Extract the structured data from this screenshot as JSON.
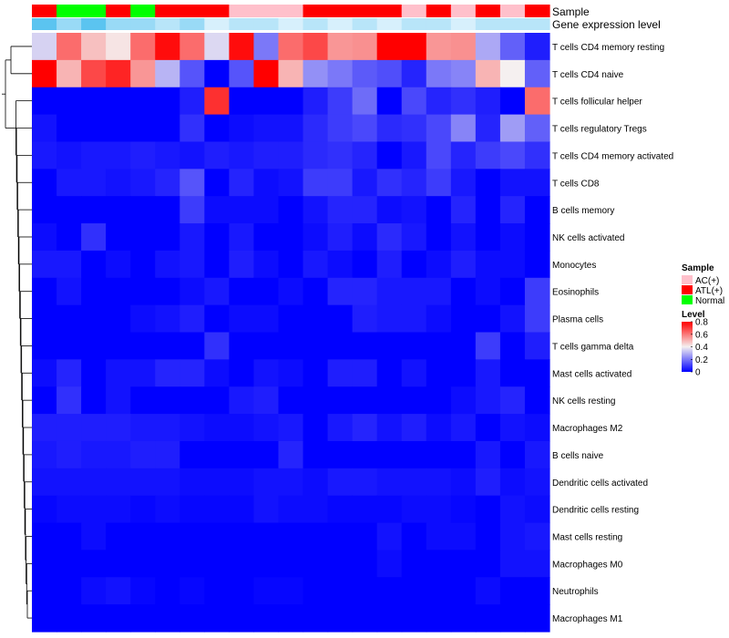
{
  "chart_data": {
    "type": "heatmap",
    "title": "",
    "annotation_rows": [
      "Sample",
      "Gene expression level"
    ],
    "rows": [
      "T cells CD4 memory resting",
      "T cells CD4 naive",
      "T cells follicular helper",
      "T cells regulatory  Tregs",
      "T cells CD4 memory activated",
      "T cells CD8",
      "B cells memory",
      "NK cells activated",
      "Monocytes",
      "Eosinophils",
      "Plasma cells",
      "T cells gamma delta",
      "Mast cells activated",
      "NK cells resting",
      "Macrophages M2",
      "B cells naive",
      "Dendritic cells activated",
      "Dendritic cells resting",
      "Mast cells resting",
      "Macrophages M0",
      "Neutrophils",
      "Macrophages M1"
    ],
    "sample_groups": [
      "ATL(+)",
      "Normal",
      "Normal",
      "ATL(+)",
      "Normal",
      "ATL(+)",
      "ATL(+)",
      "ATL(+)",
      "AC(+)",
      "AC(+)",
      "AC(+)",
      "ATL(+)",
      "ATL(+)",
      "ATL(+)",
      "ATL(+)",
      "AC(+)",
      "ATL(+)",
      "AC(+)",
      "ATL(+)",
      "AC(+)",
      "ATL(+)"
    ],
    "expression_level": [
      0.8,
      0.6,
      0.8,
      0.6,
      0.6,
      0.5,
      0.6,
      0.4,
      0.5,
      0.5,
      0.4,
      0.5,
      0.4,
      0.5,
      0.4,
      0.5,
      0.5,
      0.4,
      0.5,
      0.5,
      0.5
    ],
    "values": [
      [
        0.35,
        0.62,
        0.48,
        0.42,
        0.62,
        0.78,
        0.62,
        0.36,
        0.78,
        0.2,
        0.62,
        0.68,
        0.55,
        0.56,
        0.8,
        0.8,
        0.55,
        0.56,
        0.28,
        0.16,
        0.05
      ],
      [
        0.8,
        0.5,
        0.68,
        0.74,
        0.55,
        0.3,
        0.14,
        0.0,
        0.14,
        0.8,
        0.5,
        0.24,
        0.2,
        0.15,
        0.13,
        0.06,
        0.2,
        0.22,
        0.5,
        0.4,
        0.16
      ],
      [
        0.0,
        0.0,
        0.0,
        0.0,
        0.0,
        0.0,
        0.05,
        0.72,
        0.0,
        0.0,
        0.0,
        0.05,
        0.1,
        0.18,
        0.0,
        0.12,
        0.06,
        0.08,
        0.05,
        0.0,
        0.62
      ],
      [
        0.03,
        0.0,
        0.0,
        0.0,
        0.0,
        0.0,
        0.08,
        0.0,
        0.02,
        0.03,
        0.03,
        0.07,
        0.1,
        0.12,
        0.07,
        0.08,
        0.12,
        0.22,
        0.06,
        0.26,
        0.16
      ],
      [
        0.04,
        0.03,
        0.04,
        0.04,
        0.05,
        0.04,
        0.03,
        0.05,
        0.04,
        0.05,
        0.05,
        0.07,
        0.08,
        0.06,
        0.0,
        0.04,
        0.12,
        0.06,
        0.1,
        0.12,
        0.08
      ],
      [
        0.0,
        0.04,
        0.04,
        0.03,
        0.04,
        0.06,
        0.14,
        0.0,
        0.06,
        0.02,
        0.03,
        0.1,
        0.1,
        0.04,
        0.08,
        0.06,
        0.1,
        0.04,
        0.0,
        0.03,
        0.03
      ],
      [
        0.0,
        0.0,
        0.0,
        0.0,
        0.0,
        0.0,
        0.1,
        0.02,
        0.02,
        0.02,
        0.0,
        0.03,
        0.06,
        0.06,
        0.02,
        0.03,
        0.0,
        0.06,
        0.0,
        0.06,
        0.0
      ],
      [
        0.02,
        0.0,
        0.08,
        0.0,
        0.0,
        0.0,
        0.04,
        0.0,
        0.04,
        0.0,
        0.0,
        0.02,
        0.05,
        0.02,
        0.07,
        0.04,
        0.0,
        0.03,
        0.0,
        0.02,
        0.0
      ],
      [
        0.04,
        0.04,
        0.0,
        0.02,
        0.0,
        0.03,
        0.04,
        0.0,
        0.05,
        0.02,
        0.0,
        0.04,
        0.02,
        0.0,
        0.05,
        0.0,
        0.02,
        0.05,
        0.02,
        0.02,
        0.0
      ],
      [
        0.0,
        0.03,
        0.0,
        0.0,
        0.0,
        0.0,
        0.02,
        0.04,
        0.0,
        0.0,
        0.02,
        0.0,
        0.06,
        0.06,
        0.04,
        0.04,
        0.04,
        0.0,
        0.02,
        0.0,
        0.1
      ],
      [
        0.0,
        0.0,
        0.0,
        0.0,
        0.02,
        0.03,
        0.05,
        0.0,
        0.02,
        0.02,
        0.0,
        0.0,
        0.0,
        0.05,
        0.04,
        0.04,
        0.02,
        0.0,
        0.0,
        0.03,
        0.1
      ],
      [
        0.0,
        0.0,
        0.0,
        0.0,
        0.0,
        0.0,
        0.0,
        0.08,
        0.0,
        0.0,
        0.0,
        0.0,
        0.0,
        0.0,
        0.0,
        0.0,
        0.0,
        0.0,
        0.1,
        0.0,
        0.05
      ],
      [
        0.02,
        0.06,
        0.0,
        0.03,
        0.03,
        0.06,
        0.06,
        0.02,
        0.0,
        0.03,
        0.02,
        0.0,
        0.05,
        0.05,
        0.0,
        0.03,
        0.0,
        0.0,
        0.04,
        0.0,
        0.0
      ],
      [
        0.0,
        0.08,
        0.0,
        0.03,
        0.0,
        0.0,
        0.0,
        0.0,
        0.04,
        0.05,
        0.0,
        0.0,
        0.0,
        0.0,
        0.0,
        0.0,
        0.0,
        0.02,
        0.04,
        0.06,
        0.0
      ],
      [
        0.05,
        0.05,
        0.05,
        0.05,
        0.04,
        0.04,
        0.03,
        0.02,
        0.02,
        0.03,
        0.04,
        0.0,
        0.04,
        0.06,
        0.03,
        0.05,
        0.02,
        0.04,
        0.0,
        0.03,
        0.02
      ],
      [
        0.04,
        0.05,
        0.04,
        0.04,
        0.05,
        0.05,
        0.0,
        0.0,
        0.0,
        0.0,
        0.06,
        0.0,
        0.0,
        0.0,
        0.0,
        0.0,
        0.0,
        0.0,
        0.04,
        0.0,
        0.04
      ],
      [
        0.03,
        0.03,
        0.03,
        0.03,
        0.03,
        0.03,
        0.02,
        0.02,
        0.02,
        0.03,
        0.03,
        0.02,
        0.04,
        0.04,
        0.03,
        0.03,
        0.03,
        0.02,
        0.05,
        0.02,
        0.03
      ],
      [
        0.01,
        0.02,
        0.02,
        0.02,
        0.01,
        0.02,
        0.01,
        0.01,
        0.01,
        0.03,
        0.02,
        0.02,
        0.01,
        0.01,
        0.01,
        0.02,
        0.02,
        0.01,
        0.0,
        0.03,
        0.02
      ],
      [
        0.0,
        0.0,
        0.02,
        0.0,
        0.0,
        0.0,
        0.0,
        0.0,
        0.0,
        0.0,
        0.0,
        0.0,
        0.0,
        0.0,
        0.03,
        0.0,
        0.02,
        0.02,
        0.0,
        0.03,
        0.04
      ],
      [
        0.0,
        0.0,
        0.0,
        0.0,
        0.0,
        0.0,
        0.0,
        0.0,
        0.0,
        0.0,
        0.0,
        0.0,
        0.0,
        0.0,
        0.02,
        0.0,
        0.0,
        0.0,
        0.0,
        0.03,
        0.03
      ],
      [
        0.0,
        0.0,
        0.02,
        0.03,
        0.01,
        0.0,
        0.01,
        0.0,
        0.0,
        0.01,
        0.01,
        0.0,
        0.0,
        0.0,
        0.0,
        0.0,
        0.0,
        0.0,
        0.02,
        0.0,
        0.0
      ],
      [
        0.0,
        0.0,
        0.0,
        0.0,
        0.0,
        0.0,
        0.0,
        0.0,
        0.0,
        0.0,
        0.0,
        0.0,
        0.0,
        0.0,
        0.0,
        0.0,
        0.0,
        0.0,
        0.0,
        0.0,
        0.0
      ]
    ],
    "color_scale": {
      "domain": [
        0,
        0.4,
        0.8
      ],
      "colors": [
        "#0000ff",
        "#f5f0f0",
        "#ff0000"
      ]
    },
    "legend_sample": {
      "title": "Sample",
      "items": [
        {
          "label": "AC(+)",
          "color": "#ffc0cb"
        },
        {
          "label": "ATL(+)",
          "color": "#ff0000"
        },
        {
          "label": "Normal",
          "color": "#00ff00"
        }
      ]
    },
    "legend_level": {
      "title": "Level",
      "ticks": [
        "0.8",
        "0.6",
        "0.4",
        "0.2",
        "0"
      ],
      "tick_values": [
        0.8,
        0.6,
        0.4,
        0.2,
        0
      ]
    },
    "expression_colors": {
      "low": "#e6f6fd",
      "high": "#5bc4f0"
    }
  }
}
